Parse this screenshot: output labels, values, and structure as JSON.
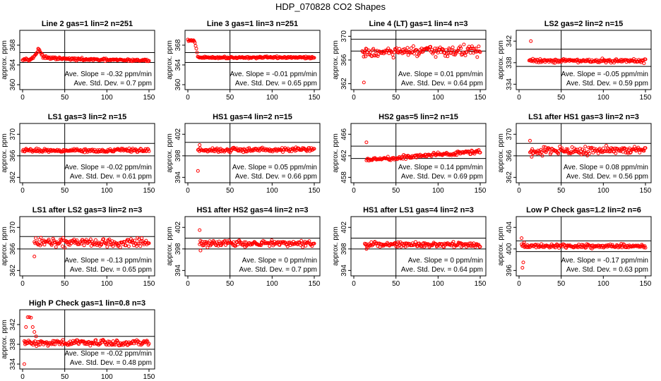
{
  "figure": {
    "title": "HDP_070828  CO2 Shapes"
  },
  "colors": {
    "points": "#ff0000",
    "axes": "#000000",
    "background": "#ffffff"
  },
  "chart_data": [
    {
      "type": "scatter",
      "title": "Line 2 gas=1 lin=2 n=251",
      "ylabel": "approx. ppm",
      "xlim": [
        0,
        150
      ],
      "ylim": [
        359,
        371
      ],
      "x_ticks": [
        0,
        50,
        100,
        150
      ],
      "y_ticks": [
        360,
        364,
        368
      ],
      "ref_lines_y": [
        364.5,
        366.5
      ],
      "vline_x": 50,
      "slope_text": "Ave. Slope = -0.32  ppm/min",
      "std_text": "Ave. Std. Dev. =  0.7  ppm",
      "shape": {
        "x_start": 0,
        "x_end": 150,
        "n": 180,
        "y0": 365.2,
        "spike_x": 18,
        "spike_y": 367.0,
        "end_y": 364.9,
        "noise": 0.15
      }
    },
    {
      "type": "scatter",
      "title": "Line 3 gas=1 lin=3 n=251",
      "ylabel": "approx. ppm",
      "xlim": [
        0,
        150
      ],
      "ylim": [
        359,
        371
      ],
      "x_ticks": [
        0,
        50,
        100,
        150
      ],
      "y_ticks": [
        360,
        364,
        368
      ],
      "ref_lines_y": [
        364.5,
        366.5
      ],
      "vline_x": 50,
      "slope_text": "Ave. Slope = -0.01  ppm/min",
      "std_text": "Ave. Std. Dev. =  0.65  ppm",
      "shape": {
        "x_start": 0,
        "x_end": 150,
        "n": 180,
        "y0": 369.0,
        "drop_x": 12,
        "end_y": 365.5,
        "noise": 0.12
      }
    },
    {
      "type": "scatter",
      "title": "Line 4 (LT) gas=1 lin=4 n=3",
      "ylabel": "approx. ppm",
      "xlim": [
        0,
        150
      ],
      "ylim": [
        361,
        371
      ],
      "x_ticks": [
        0,
        50,
        100,
        150
      ],
      "y_ticks": [
        362,
        366,
        370
      ],
      "ref_lines_y": [
        367.5,
        369.5
      ],
      "vline_x": 50,
      "slope_text": "Ave. Slope =  0.01  ppm/min",
      "std_text": "Ave. Std. Dev. =  0.64  ppm",
      "shape": {
        "x_start": 10,
        "x_end": 150,
        "n": 160,
        "y0": 367.2,
        "end_y": 367.6,
        "noise": 0.55,
        "outliers": [
          [
            12,
            362.2
          ],
          [
            14,
            366.6
          ],
          [
            13,
            367.3
          ]
        ]
      }
    },
    {
      "type": "scatter",
      "title": "LS2 gas=2 lin=2 n=15",
      "ylabel": "approx. ppm",
      "xlim": [
        0,
        150
      ],
      "ylim": [
        333,
        344
      ],
      "x_ticks": [
        0,
        50,
        100,
        150
      ],
      "y_ticks": [
        334,
        338,
        342
      ],
      "ref_lines_y": [
        337.3,
        340.5
      ],
      "vline_x": 50,
      "slope_text": "Ave. Slope = -0.05  ppm/min",
      "std_text": "Ave. Std. Dev. =  0.59  ppm",
      "shape": {
        "x_start": 12,
        "x_end": 150,
        "n": 160,
        "y0": 338.4,
        "end_y": 338.3,
        "noise": 0.22,
        "outliers": [
          [
            14,
            342.0
          ]
        ]
      }
    },
    {
      "type": "scatter",
      "title": "LS1 gas=3 lin=2 n=15",
      "ylabel": "approx. ppm",
      "xlim": [
        0,
        150
      ],
      "ylim": [
        361,
        372
      ],
      "x_ticks": [
        0,
        50,
        100,
        150
      ],
      "y_ticks": [
        362,
        366,
        370
      ],
      "ref_lines_y": [
        366.0,
        368.3
      ],
      "vline_x": 50,
      "slope_text": "Ave. Slope = -0.02  ppm/min",
      "std_text": "Ave. Std. Dev. =  0.61  ppm",
      "shape": {
        "x_start": 0,
        "x_end": 150,
        "n": 180,
        "y0": 367.0,
        "end_y": 367.0,
        "noise": 0.2
      }
    },
    {
      "type": "scatter",
      "title": "HS1 gas=4 lin=2 n=15",
      "ylabel": "approx. ppm",
      "xlim": [
        0,
        150
      ],
      "ylim": [
        393,
        404
      ],
      "x_ticks": [
        0,
        50,
        100,
        150
      ],
      "y_ticks": [
        394,
        398,
        402
      ],
      "ref_lines_y": [
        398.0,
        400.5
      ],
      "vline_x": 50,
      "slope_text": "Ave. Slope =  0.05  ppm/min",
      "std_text": "Ave. Std. Dev. =  0.66  ppm",
      "shape": {
        "x_start": 12,
        "x_end": 150,
        "n": 160,
        "y0": 399.0,
        "end_y": 399.2,
        "noise": 0.25,
        "outliers": [
          [
            12,
            395.2
          ],
          [
            14,
            400.0
          ]
        ]
      }
    },
    {
      "type": "scatter",
      "title": "HS2 gas=5 lin=2 n=15",
      "ylabel": "approx. ppm",
      "xlim": [
        0,
        150
      ],
      "ylim": [
        457,
        468
      ],
      "x_ticks": [
        0,
        50,
        100,
        150
      ],
      "y_ticks": [
        458,
        462,
        466
      ],
      "ref_lines_y": [
        461.5,
        463.8
      ],
      "vline_x": 50,
      "slope_text": "Ave. Slope =  0.14  ppm/min",
      "std_text": "Ave. Std. Dev. =  0.69  ppm",
      "shape": {
        "x_start": 15,
        "x_end": 150,
        "n": 160,
        "y0": 461.2,
        "end_y": 462.8,
        "noise": 0.22,
        "outliers": [
          [
            15,
            464.5
          ]
        ]
      }
    },
    {
      "type": "scatter",
      "title": "LS1 after HS1 gas=3 lin=2 n=3",
      "ylabel": "approx. ppm",
      "xlim": [
        0,
        150
      ],
      "ylim": [
        361,
        372
      ],
      "x_ticks": [
        0,
        50,
        100,
        150
      ],
      "y_ticks": [
        362,
        366,
        370
      ],
      "ref_lines_y": [
        366.0,
        368.3
      ],
      "vline_x": 50,
      "slope_text": "Ave. Slope =  0.08  ppm/min",
      "std_text": "Ave. Std. Dev. =  0.56  ppm",
      "shape": {
        "x_start": 13,
        "x_end": 150,
        "n": 160,
        "y0": 367.0,
        "end_y": 367.0,
        "noise": 0.45,
        "outliers": [
          [
            13,
            368.8
          ],
          [
            15,
            365.8
          ]
        ]
      }
    },
    {
      "type": "scatter",
      "title": "LS1 after LS2 gas=3 lin=2 n=3",
      "ylabel": "approx. ppm",
      "xlim": [
        0,
        150
      ],
      "ylim": [
        361,
        372
      ],
      "x_ticks": [
        0,
        50,
        100,
        150
      ],
      "y_ticks": [
        362,
        366,
        370
      ],
      "ref_lines_y": [
        366.0,
        368.3
      ],
      "vline_x": 50,
      "slope_text": "Ave. Slope = -0.13  ppm/min",
      "std_text": "Ave. Std. Dev. =  0.65  ppm",
      "shape": {
        "x_start": 14,
        "x_end": 150,
        "n": 160,
        "y0": 367.2,
        "end_y": 367.2,
        "noise": 0.5,
        "outliers": [
          [
            14,
            364.6
          ]
        ]
      }
    },
    {
      "type": "scatter",
      "title": "HS1 after HS2 gas=4 lin=2 n=3",
      "ylabel": "approx. ppm",
      "xlim": [
        0,
        150
      ],
      "ylim": [
        393,
        404
      ],
      "x_ticks": [
        0,
        50,
        100,
        150
      ],
      "y_ticks": [
        394,
        398,
        402
      ],
      "ref_lines_y": [
        398.0,
        400.0
      ],
      "vline_x": 50,
      "slope_text": "Ave. Slope =  0  ppm/min",
      "std_text": "Ave. Std. Dev. =  0.7  ppm",
      "shape": {
        "x_start": 14,
        "x_end": 150,
        "n": 160,
        "y0": 399.0,
        "end_y": 399.0,
        "noise": 0.35,
        "outliers": [
          [
            14,
            401.5
          ],
          [
            15,
            397.7
          ]
        ]
      }
    },
    {
      "type": "scatter",
      "title": "HS1 after LS1 gas=4 lin=2 n=3",
      "ylabel": "approx. ppm",
      "xlim": [
        0,
        150
      ],
      "ylim": [
        393,
        404
      ],
      "x_ticks": [
        0,
        50,
        100,
        150
      ],
      "y_ticks": [
        394,
        398,
        402
      ],
      "ref_lines_y": [
        398.0,
        400.0
      ],
      "vline_x": 50,
      "slope_text": "Ave. Slope =  0  ppm/min",
      "std_text": "Ave. Std. Dev. =  0.64  ppm",
      "shape": {
        "x_start": 13,
        "x_end": 150,
        "n": 160,
        "y0": 398.8,
        "end_y": 398.8,
        "noise": 0.3,
        "outliers": [
          [
            15,
            398.0
          ]
        ]
      }
    },
    {
      "type": "scatter",
      "title": "Low P Check gas=1.2 lin=2 n=6",
      "ylabel": "approx. ppm",
      "xlim": [
        0,
        150
      ],
      "ylim": [
        395,
        406
      ],
      "x_ticks": [
        0,
        50,
        100,
        150
      ],
      "y_ticks": [
        396,
        400,
        404
      ],
      "ref_lines_y": [
        399.5,
        401.5
      ],
      "vline_x": 50,
      "slope_text": "Ave. Slope = -0.17  ppm/min",
      "std_text": "Ave. Std. Dev. =  0.63  ppm",
      "shape": {
        "x_start": 3,
        "x_end": 150,
        "n": 170,
        "y0": 400.5,
        "end_y": 400.5,
        "noise": 0.22,
        "outliers": [
          [
            3,
            402.0
          ],
          [
            4,
            396.5
          ],
          [
            5,
            397.5
          ],
          [
            6,
            401.2
          ]
        ]
      }
    },
    {
      "type": "scatter",
      "title": "High P Check gas=1 lin=0.8 n=3",
      "ylabel": "approx. ppm",
      "xlim": [
        0,
        150
      ],
      "ylim": [
        333,
        345
      ],
      "x_ticks": [
        0,
        50,
        100,
        150
      ],
      "y_ticks": [
        334,
        338,
        342
      ],
      "ref_lines_y": [
        337.0,
        339.6
      ],
      "vline_x": 50,
      "slope_text": "Ave. Slope = -0.02  ppm/min",
      "std_text": "Ave. Std. Dev. =  0.48  ppm",
      "shape": {
        "x_start": 2,
        "x_end": 150,
        "n": 175,
        "y0": 338.3,
        "end_y": 338.3,
        "noise": 0.35,
        "outliers": [
          [
            2,
            334.0
          ],
          [
            3,
            338.0
          ],
          [
            4,
            341.5
          ],
          [
            6,
            343.5
          ],
          [
            8,
            343.5
          ],
          [
            10,
            343.4
          ],
          [
            12,
            341.5
          ],
          [
            14,
            340.5
          ],
          [
            16,
            339.6
          ]
        ]
      }
    }
  ]
}
